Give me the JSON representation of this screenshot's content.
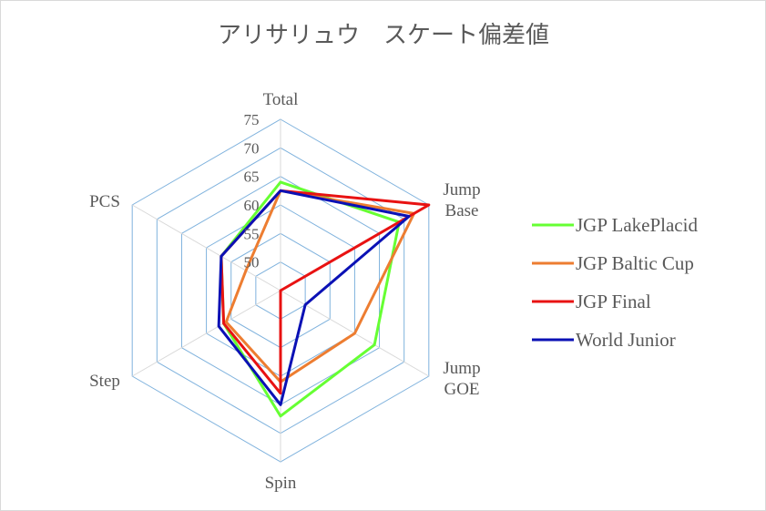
{
  "chart_data": {
    "type": "radar",
    "title": "アリサリュウ　スケート偏差値",
    "axes": [
      "Total",
      "Jump Base",
      "Jump GOE",
      "Spin",
      "Step",
      "PCS"
    ],
    "rlim": [
      45,
      75
    ],
    "ticks": [
      50,
      55,
      60,
      65,
      70,
      75
    ],
    "grid": true,
    "legend_position": "right",
    "series": [
      {
        "name": "JGP LakePlacid",
        "color": "#66ff33",
        "values": [
          64,
          69,
          64,
          67,
          56.5,
          57
        ]
      },
      {
        "name": "JGP Baltic Cup",
        "color": "#ed7d31",
        "values": [
          62.5,
          72,
          60,
          61,
          56,
          52
        ]
      },
      {
        "name": "JGP Final",
        "color": "#e81212",
        "values": [
          62.5,
          75,
          45,
          63,
          56.5,
          57
        ]
      },
      {
        "name": "World Junior",
        "color": "#0b11b5",
        "values": [
          62.5,
          71,
          50,
          65,
          57.5,
          57
        ]
      }
    ]
  }
}
